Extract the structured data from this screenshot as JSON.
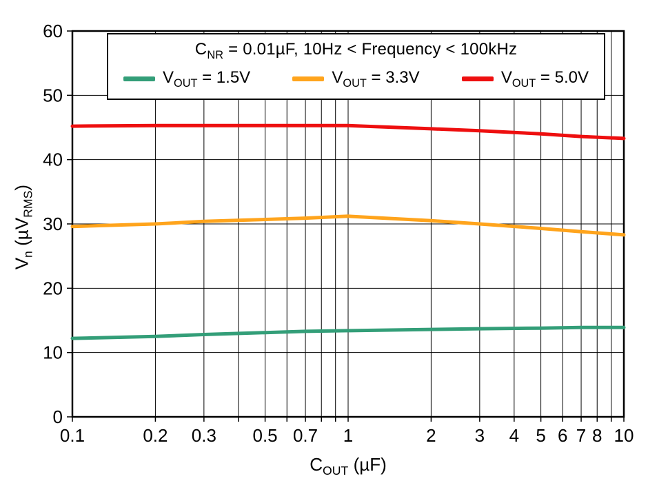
{
  "chart_data": {
    "type": "line",
    "x_scale": "log",
    "xlim": [
      0.1,
      10
    ],
    "ylim": [
      0,
      60
    ],
    "grid": true,
    "xlabel": "C~OUT~ (µF)",
    "ylabel": "V~n~ (µV~RMS~)",
    "legend_position": "top",
    "legend_title": "C~NR~ = 0.01µF, 10Hz < Frequency < 100kHz",
    "y_ticks": [
      0,
      10,
      20,
      30,
      40,
      50,
      60
    ],
    "x_tick_labels": [
      "0.1",
      "0.2",
      "0.3",
      "0.5",
      "0.7",
      "1",
      "2",
      "3",
      "4",
      "5",
      "6",
      "7",
      "8",
      "10"
    ],
    "x_tick_values": [
      0.1,
      0.2,
      0.3,
      0.5,
      0.7,
      1,
      2,
      3,
      4,
      5,
      6,
      7,
      8,
      10
    ],
    "x_gridlines": [
      0.1,
      0.2,
      0.3,
      0.4,
      0.5,
      0.6,
      0.7,
      0.8,
      0.9,
      1,
      2,
      3,
      4,
      5,
      6,
      7,
      8,
      9,
      10
    ],
    "y_gridlines": [
      10,
      20,
      30,
      40,
      50
    ],
    "x": [
      0.1,
      0.2,
      0.3,
      0.5,
      0.7,
      1,
      2,
      3,
      5,
      7,
      10
    ],
    "series": [
      {
        "name": "V~OUT~ = 1.5V",
        "color": "#339e78",
        "values": [
          12.2,
          12.5,
          12.8,
          13.1,
          13.3,
          13.4,
          13.6,
          13.7,
          13.8,
          13.9,
          13.9
        ]
      },
      {
        "name": "V~OUT~ = 3.3V",
        "color": "#ffa41c",
        "values": [
          29.6,
          30.0,
          30.4,
          30.7,
          30.9,
          31.2,
          30.5,
          30.0,
          29.3,
          28.8,
          28.3
        ]
      },
      {
        "name": "V~OUT~ = 5.0V",
        "color": "#ee0f0f",
        "values": [
          45.2,
          45.3,
          45.3,
          45.3,
          45.3,
          45.3,
          44.8,
          44.5,
          44.0,
          43.6,
          43.3
        ]
      }
    ],
    "frame_color": "#000000",
    "grid_color": "#000000"
  }
}
